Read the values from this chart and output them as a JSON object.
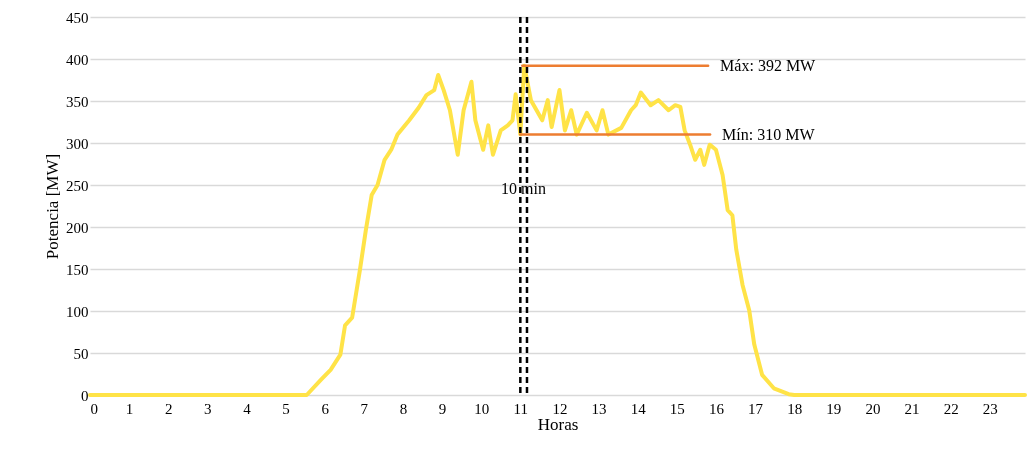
{
  "chart_data": {
    "type": "line",
    "xlabel": "Horas",
    "ylabel": "Potencia [MW]",
    "xlim": [
      0,
      23.9
    ],
    "xticks": [
      0,
      1,
      2,
      3,
      4,
      5,
      6,
      7,
      8,
      9,
      10,
      11,
      12,
      13,
      14,
      15,
      16,
      17,
      18,
      19,
      20,
      21,
      22,
      23
    ],
    "ylim": [
      0,
      450
    ],
    "yticks": [
      0,
      50,
      100,
      150,
      200,
      250,
      300,
      350,
      400,
      450
    ],
    "grid": "y",
    "series": [
      {
        "color": "#ffe347",
        "x": [
          0,
          5.54,
          5.9,
          6.15,
          6.4,
          6.52,
          6.7,
          6.9,
          7.05,
          7.2,
          7.35,
          7.53,
          7.7,
          7.86,
          8.16,
          8.4,
          8.6,
          8.8,
          8.9,
          9.04,
          9.2,
          9.4,
          9.55,
          9.75,
          9.85,
          10.05,
          10.18,
          10.3,
          10.5,
          10.68,
          10.8,
          10.88,
          11.0,
          11.1,
          11.27,
          11.56,
          11.7,
          11.8,
          12.0,
          12.14,
          12.3,
          12.44,
          12.7,
          12.95,
          13.1,
          13.25,
          13.58,
          13.83,
          13.95,
          14.08,
          14.33,
          14.53,
          14.79,
          14.96,
          15.09,
          15.2,
          15.34,
          15.47,
          15.6,
          15.7,
          15.84,
          16.0,
          16.17,
          16.3,
          16.42,
          16.52,
          16.68,
          16.85,
          16.98,
          17.18,
          17.48,
          17.86,
          18.0,
          23.9
        ],
        "values": [
          0,
          0,
          18,
          30,
          48,
          83,
          92,
          149,
          196,
          238,
          250,
          280,
          292,
          310,
          327,
          342,
          357,
          363,
          381,
          363,
          339,
          286,
          339,
          373,
          327,
          292,
          321,
          286,
          315,
          321,
          327,
          358,
          310,
          392,
          351,
          327,
          351,
          319,
          363,
          315,
          339,
          310,
          336,
          315,
          339,
          310,
          318,
          339,
          345,
          360,
          345,
          351,
          339,
          345,
          343,
          315,
          298,
          280,
          292,
          274,
          298,
          292,
          262,
          220,
          214,
          173,
          131,
          101,
          60,
          24,
          8,
          1,
          0,
          0
        ]
      },
      {
        "name": "Máx: 392 MW",
        "color": "#ed7d31",
        "x": [
          11.05,
          15.8
        ],
        "values": [
          392,
          392
        ]
      },
      {
        "name": "Mín: 310 MW",
        "color": "#ed7d31",
        "x": [
          11.0,
          15.85
        ],
        "values": [
          310,
          310
        ]
      }
    ],
    "ref_lines": [
      {
        "axis": "x",
        "value": 11.0,
        "color": "#000000",
        "line_style": "dashed"
      },
      {
        "axis": "x",
        "value": 11.17,
        "color": "#000000",
        "line_style": "dashed"
      }
    ],
    "annotations": [
      {
        "text": "10 min",
        "x": 11.08,
        "y": 245
      }
    ]
  }
}
